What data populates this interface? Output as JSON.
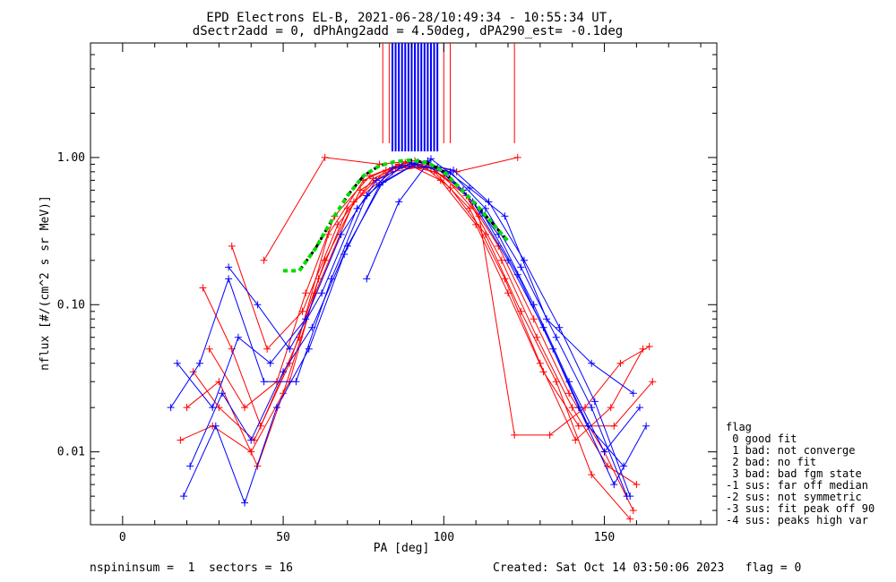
{
  "chart_data": {
    "type": "line",
    "title_line1": "EPD Electrons EL-B, 2021-06-28/10:49:34 - 10:55:34 UT,",
    "title_line2": "dSectr2add = 0, dPhAng2add = 4.50deg, dPA290_est=  -0.1deg",
    "xlabel": "PA [deg]",
    "ylabel": "nflux [#/(cm^2 s sr MeV)]",
    "xlim": [
      -10,
      185
    ],
    "ylim": [
      0.0032,
      6.0
    ],
    "yscale": "log",
    "x_ticks": [
      {
        "value": 0,
        "label": "0"
      },
      {
        "value": 50,
        "label": "50"
      },
      {
        "value": 100,
        "label": "100"
      },
      {
        "value": 150,
        "label": "150"
      }
    ],
    "y_ticks": [
      {
        "value": 0.01,
        "label": "0.01"
      },
      {
        "value": 0.1,
        "label": "0.10"
      },
      {
        "value": 1.0,
        "label": "1.00"
      }
    ],
    "colors": {
      "red_series": "#ff0000",
      "blue_series": "#0000ff",
      "fit": "#00dd00",
      "fit_dark": "#000000"
    },
    "fit_curve": {
      "x": [
        50,
        55,
        60,
        65,
        70,
        75,
        80,
        85,
        90,
        95,
        100,
        105,
        110,
        115,
        120
      ],
      "y": [
        0.17,
        0.17,
        0.24,
        0.37,
        0.55,
        0.75,
        0.88,
        0.94,
        0.96,
        0.92,
        0.8,
        0.62,
        0.48,
        0.36,
        0.27
      ]
    },
    "series": [
      {
        "color": "#ff0000",
        "x": [
          22,
          30,
          41,
          52,
          63,
          74,
          85,
          96,
          107,
          118,
          129,
          140,
          151,
          160
        ],
        "y": [
          0.035,
          0.02,
          0.012,
          0.04,
          0.2,
          0.6,
          0.85,
          0.85,
          0.55,
          0.2,
          0.06,
          0.02,
          0.008,
          0.006
        ]
      },
      {
        "color": "#ff0000",
        "x": [
          25,
          34,
          43,
          55,
          64,
          75,
          86,
          97,
          108,
          119,
          130,
          141,
          152,
          162
        ],
        "y": [
          0.13,
          0.05,
          0.015,
          0.06,
          0.3,
          0.7,
          0.9,
          0.8,
          0.45,
          0.15,
          0.04,
          0.012,
          0.02,
          0.05
        ]
      },
      {
        "color": "#ff0000",
        "x": [
          20,
          30,
          42,
          50,
          60,
          72,
          84,
          95,
          106,
          117,
          128,
          139,
          150,
          159
        ],
        "y": [
          0.02,
          0.03,
          0.008,
          0.025,
          0.12,
          0.5,
          0.8,
          0.88,
          0.6,
          0.25,
          0.08,
          0.025,
          0.01,
          0.004
        ]
      },
      {
        "color": "#ff0000",
        "x": [
          44,
          63,
          80,
          91,
          104,
          123
        ],
        "y": [
          0.2,
          1.0,
          0.9,
          0.95,
          0.8,
          1.0
        ]
      },
      {
        "color": "#ff0000",
        "x": [
          27,
          38,
          48,
          57,
          66,
          77,
          88,
          99,
          110,
          120,
          131,
          142,
          153,
          165
        ],
        "y": [
          0.05,
          0.02,
          0.03,
          0.12,
          0.4,
          0.75,
          0.92,
          0.7,
          0.35,
          0.12,
          0.035,
          0.015,
          0.015,
          0.03
        ]
      },
      {
        "color": "#ff0000",
        "x": [
          18,
          28,
          40,
          52,
          61,
          70,
          82,
          93,
          102,
          113,
          124,
          135,
          146,
          158
        ],
        "y": [
          0.012,
          0.015,
          0.01,
          0.03,
          0.15,
          0.45,
          0.82,
          0.9,
          0.62,
          0.3,
          0.09,
          0.03,
          0.007,
          0.0035
        ]
      },
      {
        "color": "#ff0000",
        "x": [
          34,
          45,
          56,
          67,
          78,
          89,
          100,
          111,
          122,
          133,
          144,
          155,
          164
        ],
        "y": [
          0.25,
          0.05,
          0.09,
          0.35,
          0.72,
          0.93,
          0.75,
          0.4,
          0.013,
          0.013,
          0.02,
          0.04,
          0.052
        ]
      },
      {
        "color": "#0000ff",
        "x": [
          15,
          24,
          33,
          44,
          54,
          65,
          76,
          87,
          98,
          109,
          120,
          131,
          142,
          153,
          163
        ],
        "y": [
          0.02,
          0.04,
          0.15,
          0.03,
          0.03,
          0.15,
          0.55,
          0.88,
          0.85,
          0.5,
          0.2,
          0.07,
          0.02,
          0.006,
          0.015
        ]
      },
      {
        "color": "#0000ff",
        "x": [
          17,
          28,
          36,
          46,
          57,
          68,
          79,
          90,
          101,
          112,
          123,
          134,
          145,
          156
        ],
        "y": [
          0.04,
          0.02,
          0.06,
          0.04,
          0.08,
          0.3,
          0.7,
          0.92,
          0.78,
          0.42,
          0.16,
          0.05,
          0.015,
          0.008
        ]
      },
      {
        "color": "#0000ff",
        "x": [
          19,
          29,
          38,
          48,
          58,
          69,
          80,
          91,
          102,
          113,
          124,
          135,
          146,
          157
        ],
        "y": [
          0.005,
          0.015,
          0.0045,
          0.02,
          0.05,
          0.22,
          0.65,
          0.9,
          0.8,
          0.45,
          0.18,
          0.06,
          0.02,
          0.005
        ]
      },
      {
        "color": "#0000ff",
        "x": [
          33,
          42,
          52,
          62,
          73,
          84,
          95,
          106,
          117,
          128,
          139,
          150,
          161
        ],
        "y": [
          0.18,
          0.1,
          0.05,
          0.12,
          0.45,
          0.85,
          0.95,
          0.6,
          0.3,
          0.1,
          0.03,
          0.01,
          0.02
        ]
      },
      {
        "color": "#0000ff",
        "x": [
          21,
          31,
          40,
          50,
          59,
          70,
          81,
          92,
          103,
          114,
          125,
          136,
          147,
          158
        ],
        "y": [
          0.008,
          0.025,
          0.012,
          0.035,
          0.07,
          0.25,
          0.68,
          0.93,
          0.82,
          0.5,
          0.2,
          0.07,
          0.022,
          0.005
        ]
      },
      {
        "color": "#0000ff",
        "x": [
          76,
          86,
          96,
          108,
          119,
          132,
          146,
          159
        ],
        "y": [
          0.15,
          0.5,
          0.98,
          0.62,
          0.4,
          0.08,
          0.04,
          0.025
        ]
      }
    ],
    "spikes": {
      "red_x": [
        81,
        83,
        85,
        88,
        91,
        94,
        97,
        100,
        102,
        122
      ],
      "blue_x": [
        84,
        85,
        86,
        87,
        88,
        89,
        90,
        91,
        92,
        93,
        94,
        95,
        96,
        97,
        98
      ]
    },
    "legend": {
      "title": "flag",
      "items": [
        " 0 good fit",
        " 1 bad: not converge",
        " 2 bad: no fit",
        " 3 bad: bad fgm state",
        "-1 sus: far off median",
        "-2 sus: not symmetric",
        "-3 sus: fit peak off 90",
        "-4 sus: peaks high var"
      ]
    }
  },
  "footer": {
    "left": "nspininsum =  1  sectors = 16",
    "right": "Created: Sat Oct 14 03:50:06 2023   flag = 0"
  }
}
